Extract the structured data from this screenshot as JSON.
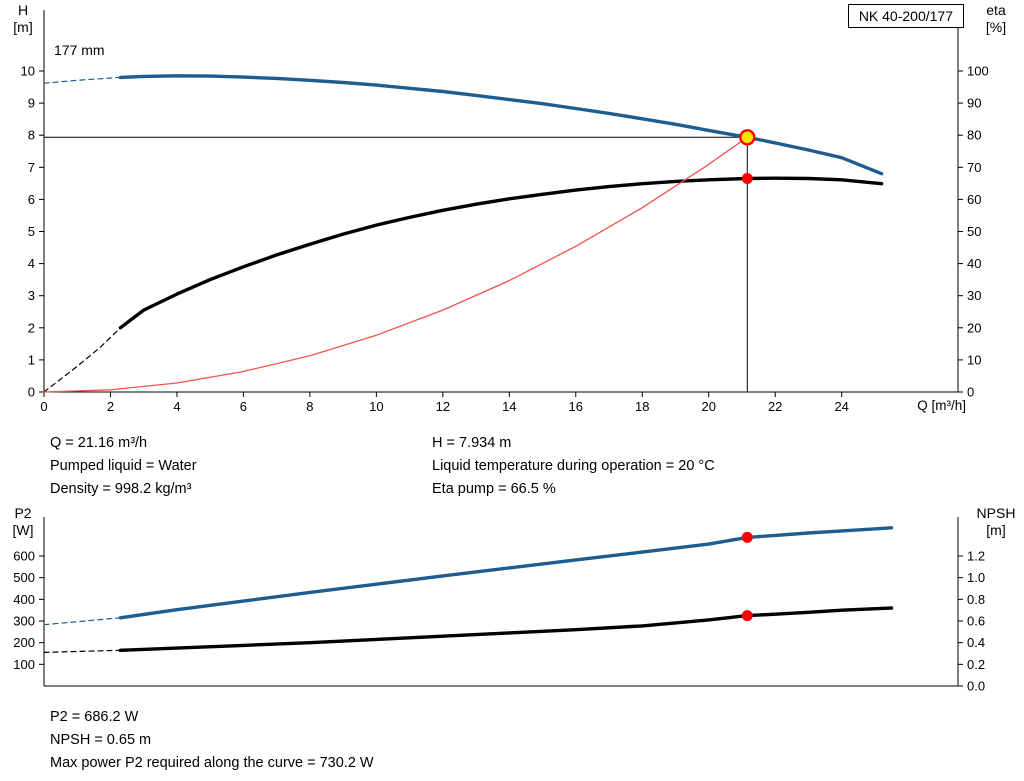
{
  "pump_model": "NK 40-200/177",
  "summary_top": {
    "left": [
      "Q = 21.16 m³/h",
      "Pumped liquid = Water",
      "Density = 998.2 kg/m³"
    ],
    "right": [
      "H = 7.934 m",
      "Liquid temperature during operation = 20 °C",
      "Eta pump = 66.5 %"
    ]
  },
  "summary_bottom": [
    "P2 = 686.2 W",
    "NPSH = 0.65 m",
    "Max power P2 required along the curve = 730.2 W"
  ],
  "colors": {
    "curve_blue": "#1d5d90",
    "curve_black": "#000000",
    "system_curve_red": "#f0544c",
    "duty_point_fill": "#ffe400",
    "duty_point_ring": "#ff0000",
    "dot_red": "#ff0000"
  },
  "chart_data": [
    {
      "name": "hq-eta-chart",
      "type": "line",
      "title": "NK 40-200/177",
      "x": {
        "label": "Q [m³/h]",
        "range": [
          0,
          27.5
        ],
        "show_tick_labels": true,
        "ticks": [
          0,
          2,
          4,
          6,
          8,
          10,
          12,
          14,
          16,
          18,
          20,
          22,
          24
        ]
      },
      "y_left": {
        "title": "H",
        "unit": "[m]",
        "range": [
          0,
          11.9
        ],
        "ticks": [
          0,
          1,
          2,
          3,
          4,
          5,
          6,
          7,
          8,
          9,
          10
        ]
      },
      "y_right": {
        "title": "eta",
        "unit": "[%]",
        "range": [
          0,
          119
        ],
        "ticks": [
          0,
          10,
          20,
          30,
          40,
          50,
          60,
          70,
          80,
          90,
          100
        ]
      },
      "annotations": [
        {
          "text": "177 mm"
        }
      ],
      "guides": [
        {
          "type": "h",
          "value": 7.934,
          "q_end": 21.16
        },
        {
          "type": "v",
          "q": 21.16,
          "value_end": 7.934
        }
      ],
      "series": [
        {
          "name": "head-curve-dashed-extension",
          "axis": "left",
          "color": "#1d5d90",
          "width": 1.2,
          "dash": true,
          "points": [
            [
              0,
              9.62
            ],
            [
              1,
              9.71
            ],
            [
              2.3,
              9.8
            ]
          ]
        },
        {
          "name": "head-curve",
          "axis": "left",
          "color": "#1d5d90",
          "width": 3.4,
          "points": [
            [
              2.3,
              9.8
            ],
            [
              3,
              9.83
            ],
            [
              4,
              9.85
            ],
            [
              5,
              9.84
            ],
            [
              6,
              9.81
            ],
            [
              7,
              9.77
            ],
            [
              8,
              9.71
            ],
            [
              9,
              9.64
            ],
            [
              10,
              9.56
            ],
            [
              11,
              9.46
            ],
            [
              12,
              9.36
            ],
            [
              13,
              9.24
            ],
            [
              14,
              9.11
            ],
            [
              15,
              8.98
            ],
            [
              16,
              8.83
            ],
            [
              17,
              8.68
            ],
            [
              18,
              8.51
            ],
            [
              19,
              8.34
            ],
            [
              20,
              8.15
            ],
            [
              21.16,
              7.934
            ],
            [
              22,
              7.76
            ],
            [
              23,
              7.54
            ],
            [
              24,
              7.3
            ],
            [
              25.2,
              6.8
            ]
          ]
        },
        {
          "name": "efficiency-curve-dashed-extension",
          "axis": "right",
          "color": "#000000",
          "width": 1.2,
          "dash": true,
          "points": [
            [
              0,
              0
            ],
            [
              1,
              8
            ],
            [
              1.7,
              14
            ],
            [
              2.3,
              20
            ]
          ]
        },
        {
          "name": "efficiency-curve",
          "axis": "right",
          "color": "#000000",
          "width": 3.4,
          "points": [
            [
              2.3,
              20
            ],
            [
              3,
              25.5
            ],
            [
              4,
              30.5
            ],
            [
              5,
              35
            ],
            [
              6,
              39
            ],
            [
              7,
              42.7
            ],
            [
              8,
              46
            ],
            [
              9,
              49.2
            ],
            [
              10,
              52
            ],
            [
              11,
              54.4
            ],
            [
              12,
              56.6
            ],
            [
              13,
              58.5
            ],
            [
              14,
              60.2
            ],
            [
              15,
              61.6
            ],
            [
              16,
              62.9
            ],
            [
              17,
              64
            ],
            [
              18,
              64.9
            ],
            [
              19,
              65.6
            ],
            [
              20,
              66.1
            ],
            [
              21.16,
              66.5
            ],
            [
              22,
              66.6
            ],
            [
              23,
              66.5
            ],
            [
              24,
              66.1
            ],
            [
              25.2,
              64.9
            ]
          ]
        },
        {
          "name": "system-curve",
          "axis": "left",
          "color": "#f0544c",
          "width": 1.3,
          "points": [
            [
              0,
              0
            ],
            [
              2,
              0.07
            ],
            [
              4,
              0.28
            ],
            [
              6,
              0.64
            ],
            [
              8,
              1.13
            ],
            [
              10,
              1.77
            ],
            [
              12,
              2.55
            ],
            [
              14,
              3.47
            ],
            [
              16,
              4.54
            ],
            [
              18,
              5.74
            ],
            [
              20,
              7.09
            ],
            [
              21.16,
              7.934
            ]
          ]
        }
      ],
      "markers": [
        {
          "name": "duty-point",
          "q": 21.16,
          "v": 7.934,
          "axis": "left",
          "r": 7,
          "fill": "#ffe400",
          "stroke": "#ff0000",
          "sw": 2.4
        },
        {
          "name": "efficiency-duty-point",
          "q": 21.16,
          "v": 66.5,
          "axis": "right",
          "r": 5.5,
          "fill": "#ff0000"
        }
      ]
    },
    {
      "name": "p2-npsh-chart",
      "type": "line",
      "x": {
        "label": "",
        "range": [
          0,
          27.5
        ],
        "show_tick_labels": false,
        "ticks": []
      },
      "y_left": {
        "title": "P2",
        "unit": "[W]",
        "range": [
          0,
          780
        ],
        "ticks": [
          100,
          200,
          300,
          400,
          500,
          600
        ]
      },
      "y_right": {
        "title": "NPSH",
        "unit": "[m]",
        "range": [
          0,
          1.56
        ],
        "ticks": [
          {
            "v": 0,
            "t": "0.0"
          },
          {
            "v": 0.2,
            "t": "0.2"
          },
          {
            "v": 0.4,
            "t": "0.4"
          },
          {
            "v": 0.6,
            "t": "0.6"
          },
          {
            "v": 0.8,
            "t": "0.8"
          },
          {
            "v": 1,
            "t": "1.0"
          },
          {
            "v": 1.2,
            "t": "1.2"
          }
        ]
      },
      "series": [
        {
          "name": "p2-curve-dashed-extension",
          "axis": "left",
          "color": "#1d5d90",
          "width": 1.2,
          "dash": true,
          "points": [
            [
              0,
              283
            ],
            [
              2.3,
              315
            ]
          ]
        },
        {
          "name": "p2-curve",
          "axis": "left",
          "color": "#1d5d90",
          "width": 3.4,
          "points": [
            [
              2.3,
              315
            ],
            [
              4,
              352
            ],
            [
              6,
              392
            ],
            [
              8,
              432
            ],
            [
              10,
              470
            ],
            [
              12,
              508
            ],
            [
              14,
              545
            ],
            [
              16,
              582
            ],
            [
              18,
              618
            ],
            [
              20,
              655
            ],
            [
              21.16,
              686
            ],
            [
              22,
              695
            ],
            [
              23,
              706
            ],
            [
              24,
              716
            ],
            [
              25.5,
              730
            ]
          ]
        },
        {
          "name": "npsh-curve-dashed-extension",
          "axis": "right",
          "color": "#000000",
          "width": 1.2,
          "dash": true,
          "points": [
            [
              0,
              0.31
            ],
            [
              2.3,
              0.33
            ]
          ]
        },
        {
          "name": "npsh-curve",
          "axis": "right",
          "color": "#000000",
          "width": 3.4,
          "points": [
            [
              2.3,
              0.33
            ],
            [
              4,
              0.35
            ],
            [
              6,
              0.375
            ],
            [
              8,
              0.4
            ],
            [
              10,
              0.43
            ],
            [
              12,
              0.46
            ],
            [
              14,
              0.49
            ],
            [
              16,
              0.52
            ],
            [
              18,
              0.555
            ],
            [
              20,
              0.61
            ],
            [
              21.16,
              0.65
            ],
            [
              22,
              0.663
            ],
            [
              23,
              0.68
            ],
            [
              24,
              0.7
            ],
            [
              25.5,
              0.72
            ]
          ]
        }
      ],
      "markers": [
        {
          "name": "p2-duty-point",
          "q": 21.16,
          "v": 686.2,
          "axis": "left",
          "r": 5.5,
          "fill": "#ff0000"
        },
        {
          "name": "npsh-duty-point",
          "q": 21.16,
          "v": 0.65,
          "axis": "right",
          "r": 5.5,
          "fill": "#ff0000"
        }
      ]
    }
  ]
}
